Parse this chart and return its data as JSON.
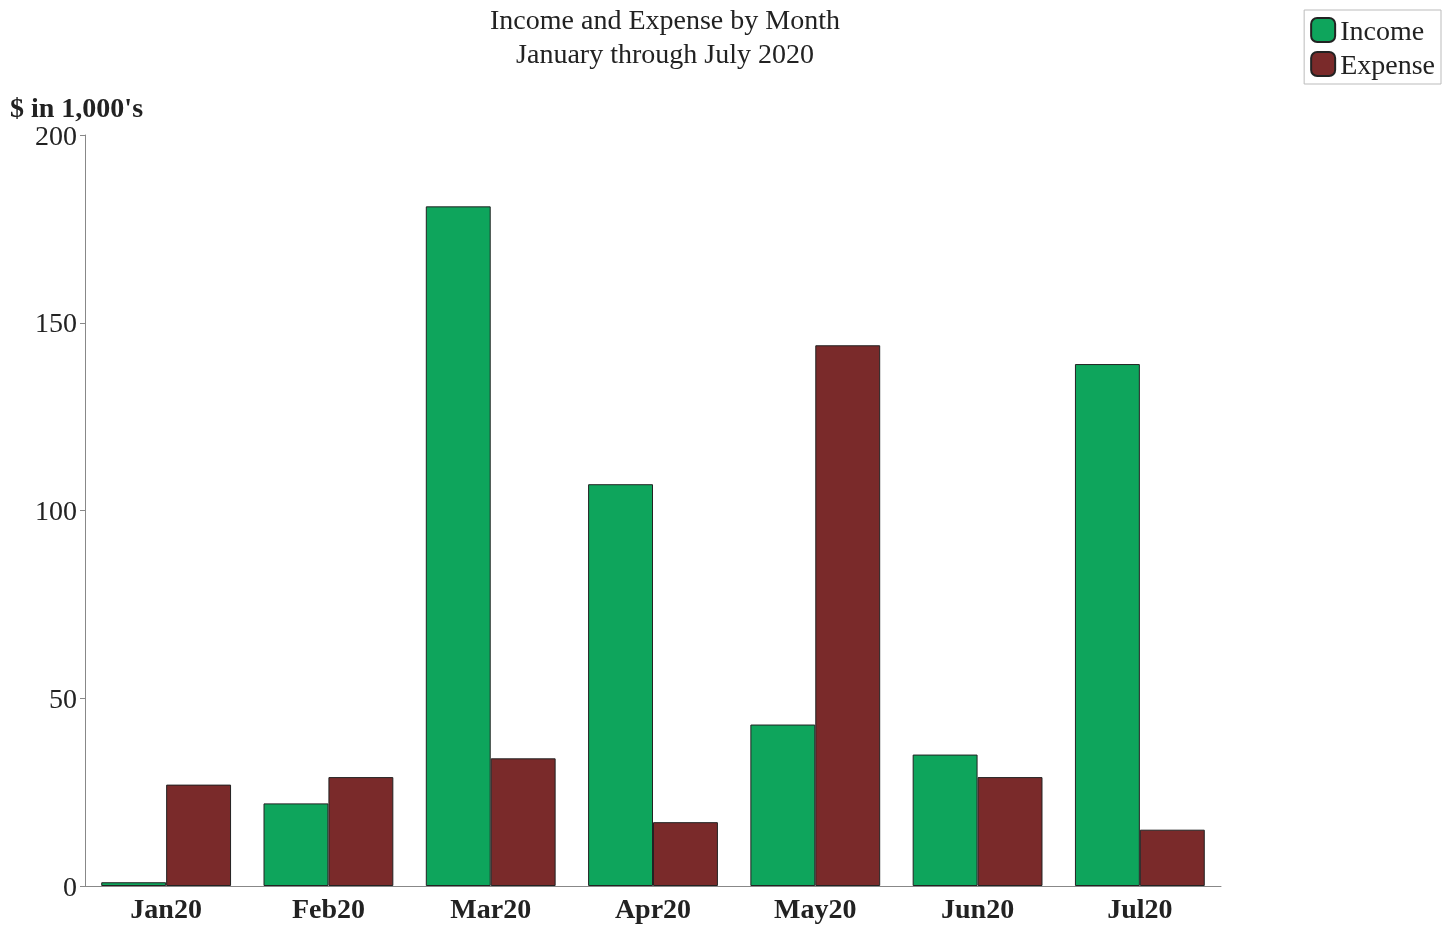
{
  "chart_data": {
    "type": "bar",
    "title": "Income and Expense by Month",
    "subtitle": "January through July 2020",
    "ylabel": "$ in 1,000's",
    "categories": [
      "Jan20",
      "Feb20",
      "Mar20",
      "Apr20",
      "May20",
      "Jun20",
      "Jul20"
    ],
    "series": [
      {
        "name": "Income",
        "color": "#0ea55c",
        "values": [
          1,
          22,
          181,
          107,
          43,
          35,
          139
        ]
      },
      {
        "name": "Expense",
        "color": "#7a2a2a",
        "values": [
          27,
          29,
          34,
          17,
          144,
          29,
          15
        ]
      }
    ],
    "ylim": [
      0,
      200
    ],
    "yticks": [
      0,
      50,
      100,
      150,
      200
    ],
    "grid": false,
    "legend": "top right"
  }
}
